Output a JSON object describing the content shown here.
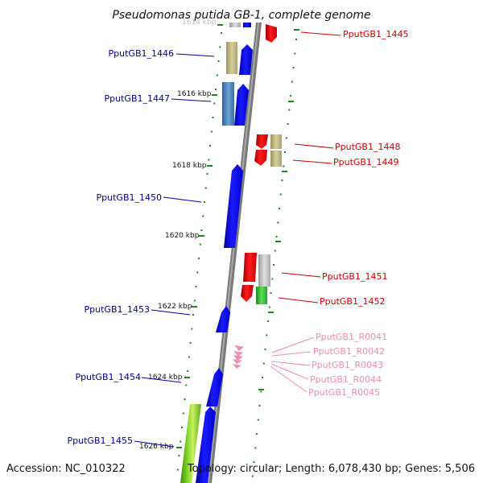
{
  "title": "Pseudomonas putida GB-1, complete genome",
  "footer": {
    "accession": "Accession: NC_010322",
    "summary": "Topology: circular; Length: 6,078,430 bp; Genes: 5,506"
  },
  "colors": {
    "forward_label": "#00008b",
    "reverse_label": "#cc0000",
    "rna_label": "#f08cb4",
    "backbone": "#7a7a7a",
    "tick": "#1a8a1a"
  },
  "kbp_labels": [
    "1614 kbp",
    "1616 kbp",
    "1618 kbp",
    "1620 kbp",
    "1622 kbp",
    "1624 kbp",
    "1626 kbp"
  ],
  "genes": [
    {
      "id": "PputGB1_1445",
      "strand": "reverse"
    },
    {
      "id": "PputGB1_1446",
      "strand": "forward"
    },
    {
      "id": "PputGB1_1447",
      "strand": "forward"
    },
    {
      "id": "PputGB1_1448",
      "strand": "reverse"
    },
    {
      "id": "PputGB1_1449",
      "strand": "reverse"
    },
    {
      "id": "PputGB1_1450",
      "strand": "forward"
    },
    {
      "id": "PputGB1_1451",
      "strand": "reverse"
    },
    {
      "id": "PputGB1_1452",
      "strand": "reverse"
    },
    {
      "id": "PputGB1_1453",
      "strand": "forward"
    },
    {
      "id": "PputGB1_R0041",
      "strand": "rna"
    },
    {
      "id": "PputGB1_R0042",
      "strand": "rna"
    },
    {
      "id": "PputGB1_R0043",
      "strand": "rna"
    },
    {
      "id": "PputGB1_R0044",
      "strand": "rna"
    },
    {
      "id": "PputGB1_R0045",
      "strand": "rna"
    },
    {
      "id": "PputGB1_1454",
      "strand": "forward"
    },
    {
      "id": "PputGB1_1455",
      "strand": "forward"
    }
  ]
}
